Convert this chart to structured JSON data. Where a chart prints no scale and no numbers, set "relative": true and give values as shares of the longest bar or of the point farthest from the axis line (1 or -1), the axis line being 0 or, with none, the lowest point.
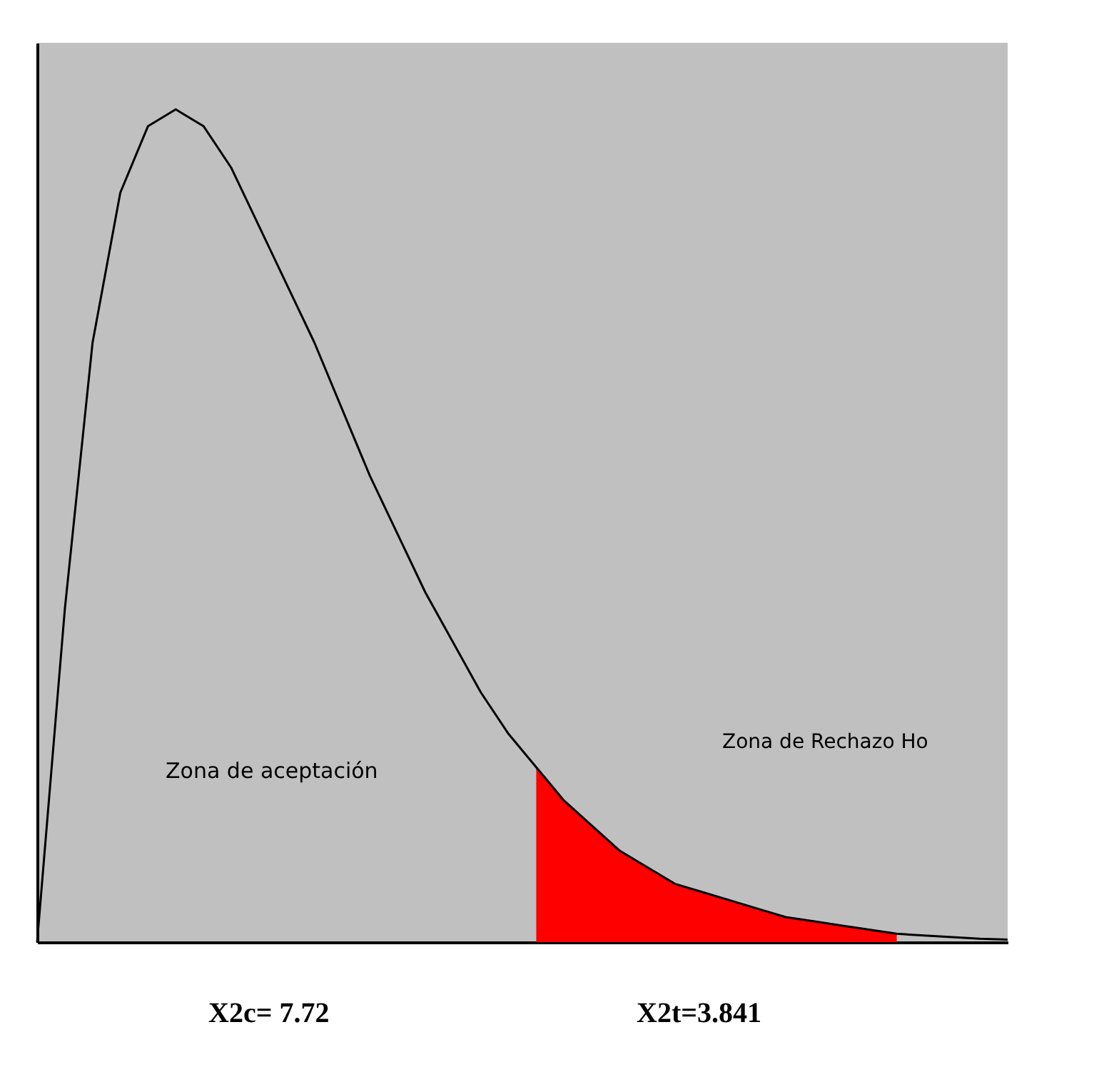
{
  "chart_data": {
    "type": "line",
    "relative": true,
    "categories": [
      null,
      null,
      null,
      null,
      null,
      null,
      null,
      null,
      null,
      null,
      null,
      null,
      null,
      null,
      null,
      null,
      null,
      null,
      null,
      null,
      null,
      null,
      null,
      null,
      null,
      null,
      null,
      null,
      null,
      null,
      null,
      null,
      null,
      null,
      null,
      null
    ],
    "series": [
      {
        "color": "#000000",
        "values": [
          0,
          0.4,
          0.72,
          0.9,
          0.98,
          1.0,
          0.98,
          0.93,
          0.86,
          0.79,
          0.72,
          0.64,
          0.56,
          0.49,
          0.42,
          0.36,
          0.3,
          0.25,
          0.21,
          0.17,
          0.14,
          0.11,
          0.09,
          0.07,
          0.06,
          0.05,
          0.04,
          0.03,
          0.025,
          0.02,
          0.015,
          0.01,
          0.008,
          0.006,
          0.004,
          0.003
        ]
      },
      {
        "type": "area",
        "color": "#ff0000",
        "values": [
          null,
          null,
          null,
          null,
          null,
          null,
          null,
          null,
          null,
          null,
          null,
          null,
          null,
          null,
          null,
          null,
          null,
          null,
          0.21,
          0.17,
          0.14,
          0.11,
          0.09,
          0.07,
          0.06,
          0.05,
          0.04,
          0.03,
          0.025,
          0.02,
          0.015,
          0.01,
          null,
          null,
          null,
          null
        ]
      }
    ],
    "annotations": [
      "Zona de aceptación",
      "Zona de Rechazo Ho",
      "X2c= 7.72",
      "X2t=3.841"
    ]
  }
}
